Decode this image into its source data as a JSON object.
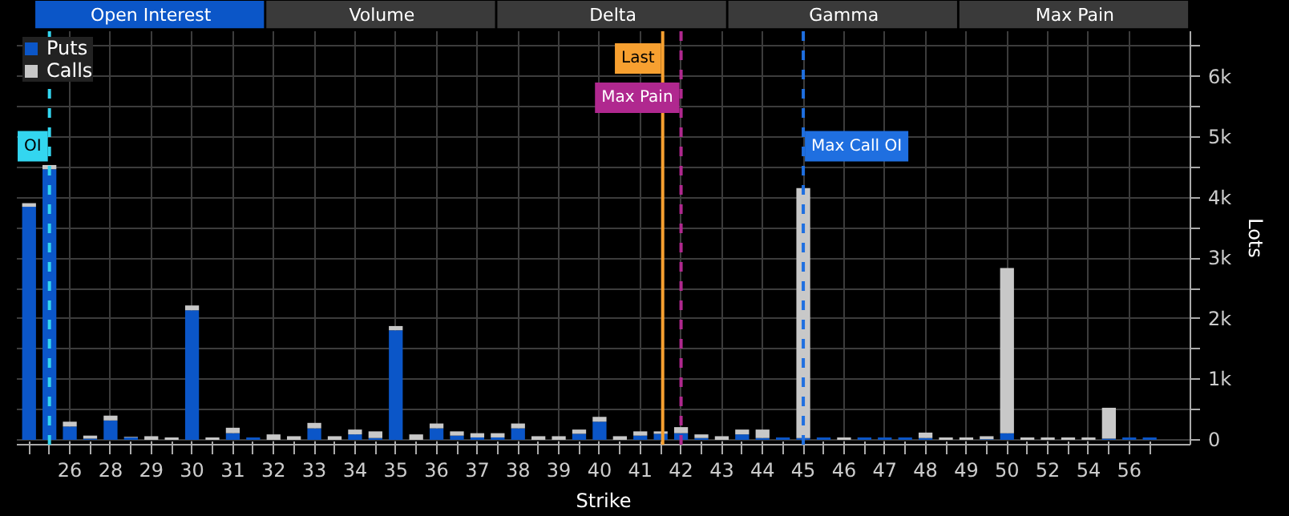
{
  "chart_data": {
    "type": "bar",
    "stacked": true,
    "annotations": [
      "Open Interest",
      "Volume",
      "Delta",
      "Gamma",
      "Max Pain"
    ],
    "xlabel": "Strike",
    "ylabel": "Lots",
    "categories": [
      null,
      null,
      "26",
      null,
      "28",
      null,
      "29",
      null,
      "30",
      null,
      "31",
      null,
      "32",
      null,
      "33",
      null,
      "34",
      null,
      "35",
      null,
      "36",
      null,
      "37",
      null,
      "38",
      null,
      "39",
      null,
      "40",
      null,
      "41",
      null,
      "42",
      null,
      "43",
      null,
      "44",
      null,
      "45",
      null,
      "46",
      null,
      "47",
      null,
      "48",
      null,
      "49",
      null,
      "50",
      null,
      "52",
      null,
      "54",
      null,
      "56",
      null
    ],
    "series": [
      {
        "name": "Puts",
        "color": "#0b56c8",
        "values": [
          3850,
          4470,
          220,
          20,
          320,
          40,
          0,
          0,
          2140,
          0,
          110,
          40,
          0,
          0,
          190,
          0,
          90,
          30,
          1810,
          0,
          190,
          70,
          40,
          40,
          190,
          0,
          0,
          100,
          300,
          0,
          70,
          100,
          110,
          30,
          0,
          90,
          30,
          40,
          30,
          40,
          0,
          40,
          40,
          40,
          30,
          0,
          0,
          10,
          110,
          0,
          0,
          0,
          0,
          20,
          40,
          40
        ]
      },
      {
        "name": "Calls",
        "color": "#c8c8c8",
        "values": [
          60,
          70,
          80,
          50,
          80,
          10,
          60,
          40,
          80,
          40,
          90,
          0,
          90,
          60,
          90,
          60,
          80,
          110,
          70,
          90,
          80,
          70,
          70,
          70,
          80,
          60,
          60,
          70,
          80,
          60,
          70,
          40,
          100,
          60,
          60,
          80,
          140,
          0,
          4130,
          0,
          40,
          0,
          0,
          0,
          90,
          40,
          40,
          50,
          2730,
          40,
          40,
          40,
          40,
          510,
          0,
          0
        ]
      }
    ],
    "ylim": [
      -80,
      6750
    ],
    "yticks": [
      0,
      {
        "value": 500,
        "label": null
      },
      {
        "value": 1000,
        "label": "1k"
      },
      {
        "value": 1500,
        "label": null
      },
      {
        "value": 2000,
        "label": "2k"
      },
      {
        "value": 2500,
        "label": null
      },
      {
        "value": 3000,
        "label": "3k"
      },
      {
        "value": 3500,
        "label": null
      },
      {
        "value": 4000,
        "label": "4k"
      },
      {
        "value": 4500,
        "label": null
      },
      {
        "value": 5000,
        "label": "5k"
      },
      {
        "value": 5500,
        "label": null
      },
      {
        "value": 6000,
        "label": "6k"
      },
      {
        "value": 6500,
        "label": null
      }
    ],
    "ref_lines": [
      {
        "axis": "x",
        "label": "OI",
        "color": "#33d6f0",
        "line_style": "dashed"
      },
      {
        "axis": "x",
        "label": "Last",
        "color": "#f7a030",
        "line_style": "solid"
      },
      {
        "axis": "x",
        "value": "42",
        "label": "Max Pain",
        "color": "#b0288f",
        "line_style": "dashed"
      },
      {
        "axis": "x",
        "value": "45",
        "label": "Max Call OI",
        "color": "#1f6fe0",
        "line_style": "dashed"
      }
    ],
    "grid": true,
    "legend": "top left"
  }
}
